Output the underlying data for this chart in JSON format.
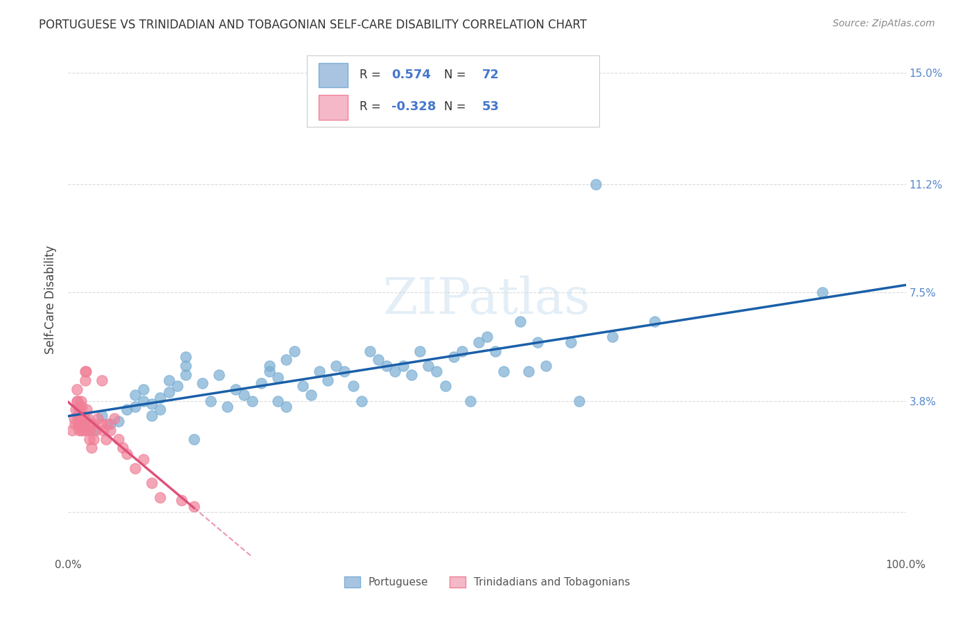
{
  "title": "PORTUGUESE VS TRINIDADIAN AND TOBAGONIAN SELF-CARE DISABILITY CORRELATION CHART",
  "source": "Source: ZipAtlas.com",
  "ylabel": "Self-Care Disability",
  "xlim": [
    0,
    1.0
  ],
  "ylim": [
    -0.015,
    0.16
  ],
  "yticks": [
    0.0,
    0.038,
    0.075,
    0.112,
    0.15
  ],
  "ytick_labels": [
    "",
    "3.8%",
    "7.5%",
    "11.2%",
    "15.0%"
  ],
  "xticks": [
    0.0,
    0.2,
    0.4,
    0.6,
    0.8,
    1.0
  ],
  "xtick_labels": [
    "0.0%",
    "",
    "",
    "",
    "",
    "100.0%"
  ],
  "watermark": "ZIPatlas",
  "portuguese_color": "#7bafd4",
  "portuguese_trendline_color": "#1a5fa8",
  "trinidadian_color": "#f08098",
  "trinidadian_trendline_color": "#e0507a",
  "background_color": "#ffffff",
  "grid_color": "#cccccc",
  "portuguese_scatter": [
    [
      0.02,
      0.032
    ],
    [
      0.03,
      0.028
    ],
    [
      0.04,
      0.033
    ],
    [
      0.05,
      0.03
    ],
    [
      0.06,
      0.031
    ],
    [
      0.07,
      0.035
    ],
    [
      0.08,
      0.04
    ],
    [
      0.08,
      0.036
    ],
    [
      0.09,
      0.038
    ],
    [
      0.09,
      0.042
    ],
    [
      0.1,
      0.033
    ],
    [
      0.1,
      0.037
    ],
    [
      0.11,
      0.035
    ],
    [
      0.11,
      0.039
    ],
    [
      0.12,
      0.041
    ],
    [
      0.12,
      0.045
    ],
    [
      0.13,
      0.043
    ],
    [
      0.14,
      0.05
    ],
    [
      0.14,
      0.047
    ],
    [
      0.14,
      0.053
    ],
    [
      0.15,
      0.025
    ],
    [
      0.16,
      0.044
    ],
    [
      0.17,
      0.038
    ],
    [
      0.18,
      0.047
    ],
    [
      0.19,
      0.036
    ],
    [
      0.2,
      0.042
    ],
    [
      0.21,
      0.04
    ],
    [
      0.22,
      0.038
    ],
    [
      0.23,
      0.044
    ],
    [
      0.24,
      0.05
    ],
    [
      0.24,
      0.048
    ],
    [
      0.25,
      0.046
    ],
    [
      0.25,
      0.038
    ],
    [
      0.26,
      0.036
    ],
    [
      0.26,
      0.052
    ],
    [
      0.27,
      0.055
    ],
    [
      0.28,
      0.043
    ],
    [
      0.29,
      0.04
    ],
    [
      0.3,
      0.048
    ],
    [
      0.31,
      0.045
    ],
    [
      0.32,
      0.05
    ],
    [
      0.33,
      0.048
    ],
    [
      0.34,
      0.043
    ],
    [
      0.35,
      0.038
    ],
    [
      0.36,
      0.055
    ],
    [
      0.37,
      0.052
    ],
    [
      0.38,
      0.05
    ],
    [
      0.39,
      0.048
    ],
    [
      0.4,
      0.05
    ],
    [
      0.41,
      0.047
    ],
    [
      0.42,
      0.055
    ],
    [
      0.43,
      0.05
    ],
    [
      0.44,
      0.048
    ],
    [
      0.45,
      0.043
    ],
    [
      0.46,
      0.053
    ],
    [
      0.47,
      0.055
    ],
    [
      0.48,
      0.038
    ],
    [
      0.49,
      0.058
    ],
    [
      0.5,
      0.06
    ],
    [
      0.51,
      0.055
    ],
    [
      0.52,
      0.048
    ],
    [
      0.54,
      0.065
    ],
    [
      0.55,
      0.048
    ],
    [
      0.56,
      0.058
    ],
    [
      0.57,
      0.05
    ],
    [
      0.6,
      0.058
    ],
    [
      0.61,
      0.038
    ],
    [
      0.63,
      0.112
    ],
    [
      0.65,
      0.06
    ],
    [
      0.7,
      0.065
    ],
    [
      0.9,
      0.075
    ]
  ],
  "trinidadian_scatter": [
    [
      0.005,
      0.028
    ],
    [
      0.007,
      0.032
    ],
    [
      0.008,
      0.03
    ],
    [
      0.009,
      0.035
    ],
    [
      0.01,
      0.042
    ],
    [
      0.01,
      0.038
    ],
    [
      0.011,
      0.038
    ],
    [
      0.011,
      0.033
    ],
    [
      0.012,
      0.03
    ],
    [
      0.012,
      0.035
    ],
    [
      0.013,
      0.028
    ],
    [
      0.013,
      0.032
    ],
    [
      0.014,
      0.03
    ],
    [
      0.014,
      0.036
    ],
    [
      0.015,
      0.032
    ],
    [
      0.015,
      0.038
    ],
    [
      0.016,
      0.036
    ],
    [
      0.016,
      0.028
    ],
    [
      0.017,
      0.03
    ],
    [
      0.017,
      0.032
    ],
    [
      0.018,
      0.028
    ],
    [
      0.018,
      0.033
    ],
    [
      0.019,
      0.03
    ],
    [
      0.02,
      0.048
    ],
    [
      0.02,
      0.045
    ],
    [
      0.021,
      0.048
    ],
    [
      0.022,
      0.035
    ],
    [
      0.023,
      0.028
    ],
    [
      0.024,
      0.032
    ],
    [
      0.025,
      0.028
    ],
    [
      0.025,
      0.025
    ],
    [
      0.027,
      0.03
    ],
    [
      0.028,
      0.022
    ],
    [
      0.03,
      0.025
    ],
    [
      0.03,
      0.03
    ],
    [
      0.033,
      0.028
    ],
    [
      0.035,
      0.032
    ],
    [
      0.04,
      0.03
    ],
    [
      0.04,
      0.045
    ],
    [
      0.042,
      0.028
    ],
    [
      0.045,
      0.025
    ],
    [
      0.047,
      0.03
    ],
    [
      0.05,
      0.028
    ],
    [
      0.055,
      0.032
    ],
    [
      0.06,
      0.025
    ],
    [
      0.065,
      0.022
    ],
    [
      0.07,
      0.02
    ],
    [
      0.08,
      0.015
    ],
    [
      0.09,
      0.018
    ],
    [
      0.1,
      0.01
    ],
    [
      0.11,
      0.005
    ],
    [
      0.135,
      0.004
    ],
    [
      0.15,
      0.002
    ]
  ]
}
